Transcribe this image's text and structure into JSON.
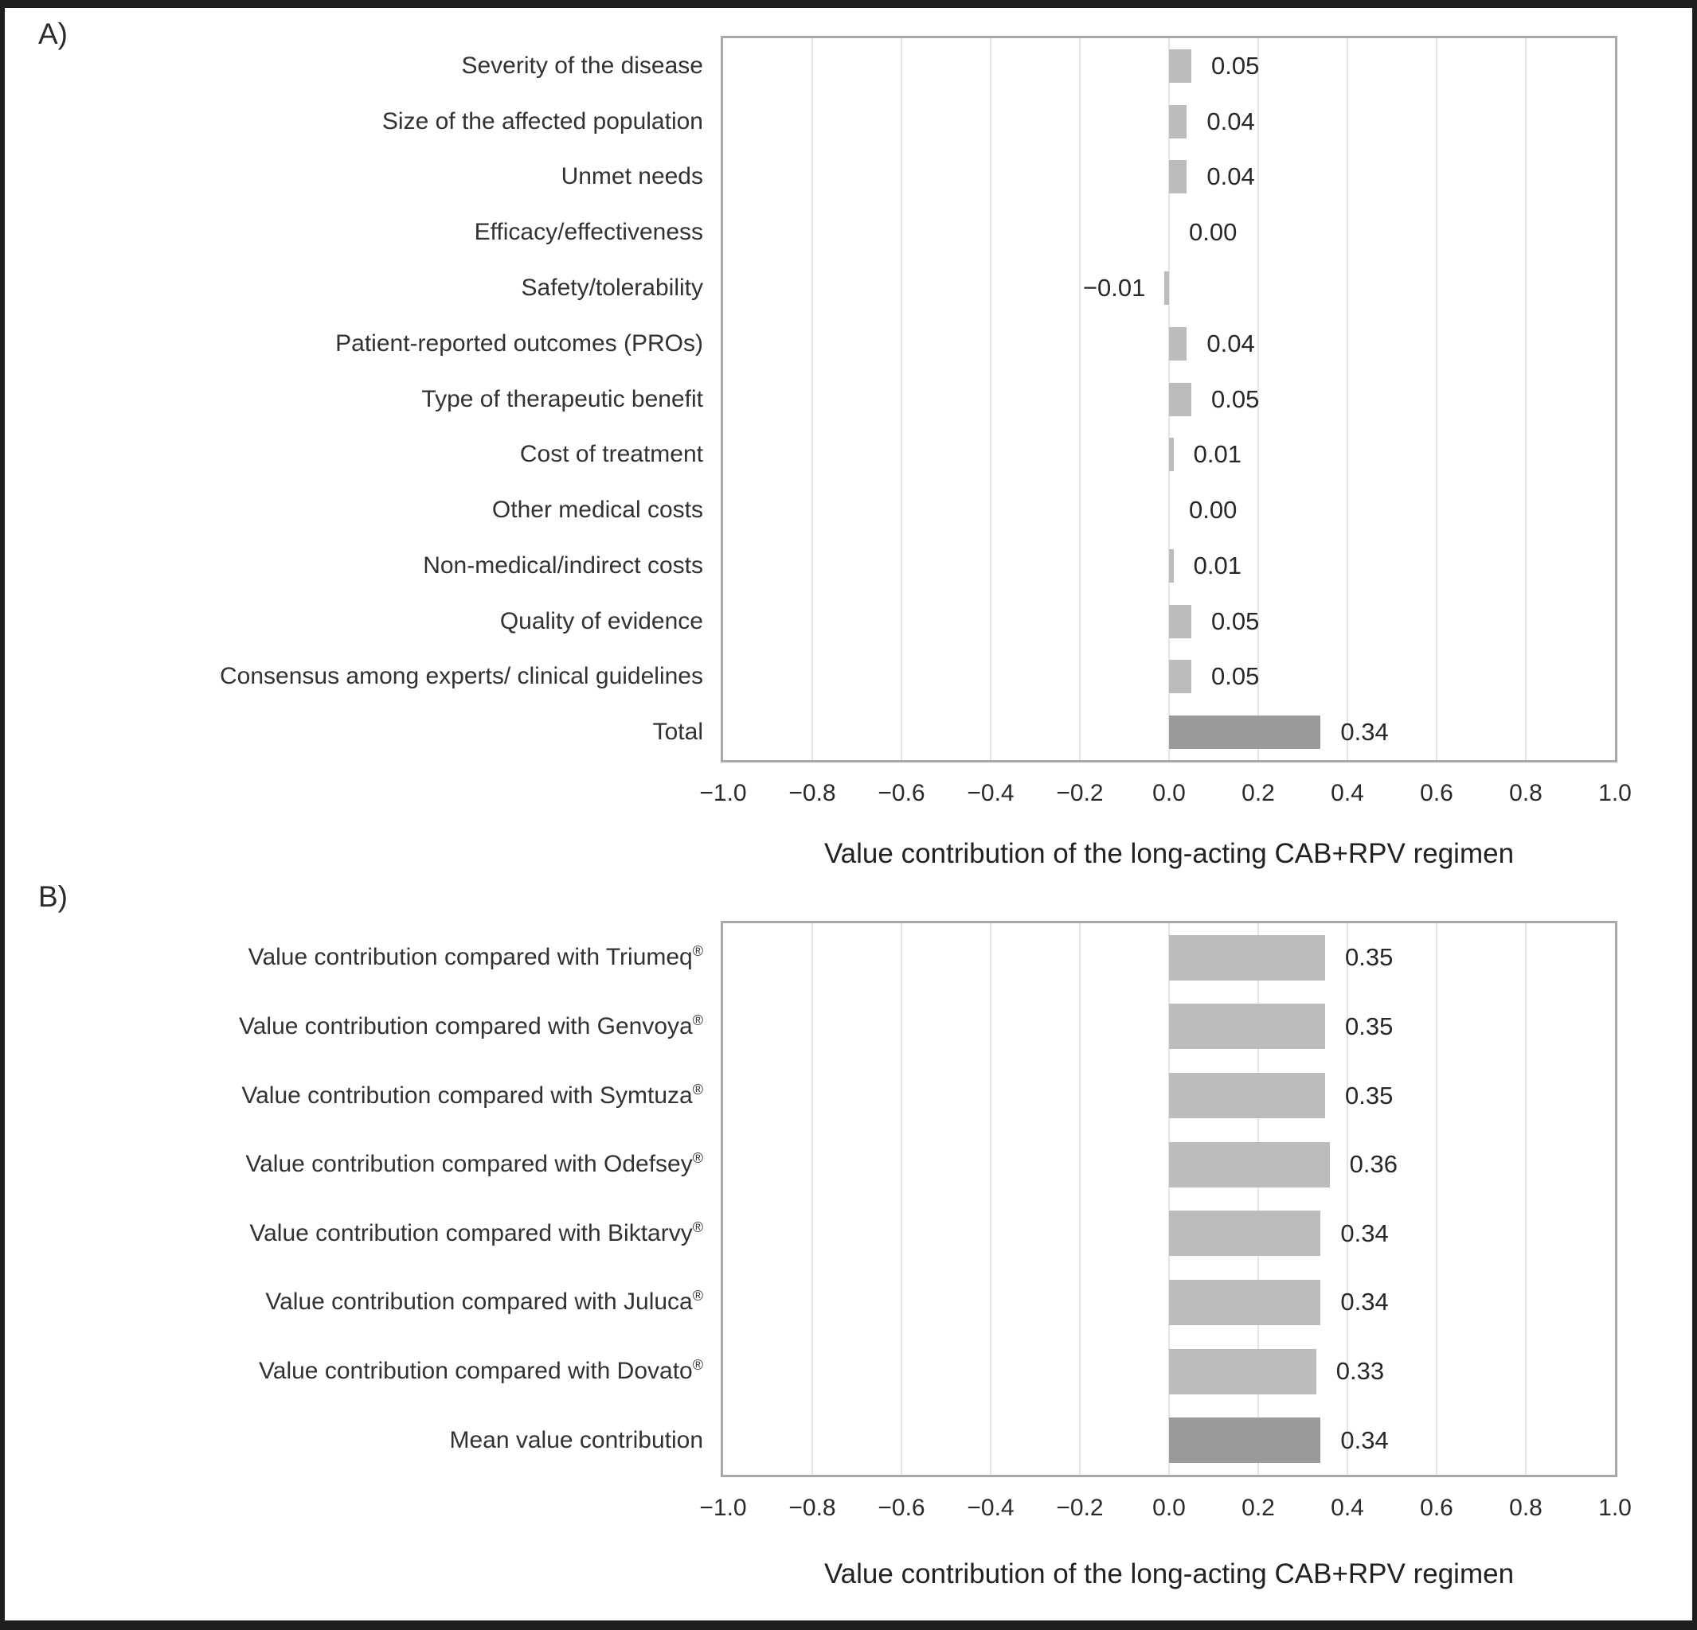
{
  "figure": {
    "panel_a_label": "A)",
    "panel_b_label": "B)"
  },
  "chart_data": [
    {
      "type": "bar",
      "orientation": "horizontal",
      "panel": "A)",
      "categories": [
        "Severity of the disease",
        "Size of the affected population",
        "Unmet needs",
        "Efficacy/effectiveness",
        "Safety/tolerability",
        "Patient-reported outcomes (PROs)",
        "Type of therapeutic benefit",
        "Cost of treatment",
        "Other medical costs",
        "Non-medical/indirect costs",
        "Quality of evidence",
        "Consensus among experts/ clinical guidelines",
        "Total"
      ],
      "values": [
        0.05,
        0.04,
        0.04,
        0.0,
        -0.01,
        0.04,
        0.05,
        0.01,
        0.0,
        0.01,
        0.05,
        0.05,
        0.34
      ],
      "value_labels": [
        "0.05",
        "0.04",
        "0.04",
        "0.00",
        "−0.01",
        "0.04",
        "0.05",
        "0.01",
        "0.00",
        "0.01",
        "0.05",
        "0.05",
        "0.34"
      ],
      "highlight_category": "Total",
      "xlabel": "Value contribution of the long-acting CAB+RPV regimen",
      "xlim": [
        -1.0,
        1.0
      ],
      "xticks": [
        -1.0,
        -0.8,
        -0.6,
        -0.4,
        -0.2,
        0.0,
        0.2,
        0.4,
        0.6,
        0.8,
        1.0
      ],
      "xtick_labels": [
        "−1.0",
        "−0.8",
        "−0.6",
        "−0.4",
        "−0.2",
        "0.0",
        "0.2",
        "0.4",
        "0.6",
        "0.8",
        "1.0"
      ],
      "grid": "vertical-gridlines-on",
      "legend": "none"
    },
    {
      "type": "bar",
      "orientation": "horizontal",
      "panel": "B)",
      "categories": [
        "Value contribution compared with Triumeq®",
        "Value contribution compared with Genvoya®",
        "Value contribution compared with Symtuza®",
        "Value contribution compared with Odefsey®",
        "Value contribution compared with Biktarvy®",
        "Value contribution compared with Juluca®",
        "Value contribution compared with Dovato®",
        "Mean value contribution"
      ],
      "values": [
        0.35,
        0.35,
        0.35,
        0.36,
        0.34,
        0.34,
        0.33,
        0.34
      ],
      "value_labels": [
        "0.35",
        "0.35",
        "0.35",
        "0.36",
        "0.34",
        "0.34",
        "0.33",
        "0.34"
      ],
      "highlight_category": "Mean value contribution",
      "xlabel": "Value contribution of the long-acting CAB+RPV regimen",
      "xlim": [
        -1.0,
        1.0
      ],
      "xticks": [
        -1.0,
        -0.8,
        -0.6,
        -0.4,
        -0.2,
        0.0,
        0.2,
        0.4,
        0.6,
        0.8,
        1.0
      ],
      "xtick_labels": [
        "−1.0",
        "−0.8",
        "−0.6",
        "−0.4",
        "−0.2",
        "0.0",
        "0.2",
        "0.4",
        "0.6",
        "0.8",
        "1.0"
      ],
      "grid": "vertical-gridlines-on",
      "legend": "none"
    }
  ],
  "colors": {
    "bar": "#bcbcbc",
    "bar_highlight": "#9a9a9a",
    "plot_border": "#a8a8a8",
    "gridline": "#e5e5e5",
    "text": "#2b2b2b",
    "frame": "#1e1e1e",
    "background": "#ffffff"
  }
}
